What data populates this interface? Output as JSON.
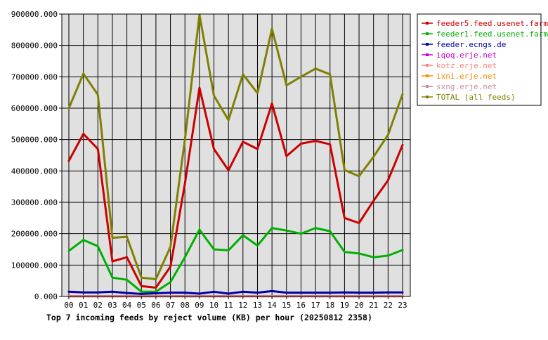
{
  "chart_data": {
    "type": "line",
    "title": "Top 7 incoming feeds by reject volume (KB) per hour (20250812 2358)",
    "categories": [
      "00",
      "01",
      "02",
      "03",
      "04",
      "05",
      "06",
      "07",
      "08",
      "09",
      "10",
      "11",
      "12",
      "13",
      "14",
      "15",
      "16",
      "17",
      "18",
      "19",
      "20",
      "21",
      "22",
      "23"
    ],
    "ylim": [
      0,
      900000
    ],
    "yticks": [
      {
        "value": 0,
        "label": "0.000"
      },
      {
        "value": 100000,
        "label": "100000.000"
      },
      {
        "value": 200000,
        "label": "200000.000"
      },
      {
        "value": 300000,
        "label": "300000.000"
      },
      {
        "value": 400000,
        "label": "400000.000"
      },
      {
        "value": 500000,
        "label": "500000.000"
      },
      {
        "value": 600000,
        "label": "600000.000"
      },
      {
        "value": 700000,
        "label": "700000.000"
      },
      {
        "value": 800000,
        "label": "800000.000"
      },
      {
        "value": 900000,
        "label": "900000.000"
      }
    ],
    "grid": true,
    "legend_position": "right",
    "plot_background": "#e0e0e0",
    "series": [
      {
        "name": "feeder5.feed.usenet.farm",
        "color": "#cc0000",
        "values": [
          432000,
          518000,
          470000,
          112000,
          125000,
          33000,
          28000,
          95000,
          360000,
          665000,
          470000,
          402000,
          493000,
          470000,
          615000,
          447000,
          487000,
          496000,
          485000,
          250000,
          234000,
          305000,
          370000,
          483000
        ]
      },
      {
        "name": "feeder1.feed.usenet.farm",
        "color": "#00b000",
        "values": [
          145000,
          180000,
          160000,
          60000,
          53000,
          15000,
          15000,
          46000,
          125000,
          213000,
          150000,
          147000,
          195000,
          162000,
          218000,
          210000,
          200000,
          218000,
          208000,
          142000,
          137000,
          125000,
          130000,
          148000
        ]
      },
      {
        "name": "feeder.ecngs.de",
        "color": "#0000aa",
        "values": [
          15000,
          13000,
          13000,
          15000,
          11000,
          8000,
          10000,
          12000,
          12000,
          9000,
          15000,
          9000,
          15000,
          12000,
          17000,
          12000,
          12000,
          12000,
          12000,
          13000,
          12000,
          12000,
          13000,
          13000
        ]
      },
      {
        "name": "iqoq.erje.net",
        "color": "#cc00cc",
        "values": [
          1000,
          1000,
          1000,
          1000,
          1000,
          1000,
          1000,
          1000,
          1000,
          1000,
          1000,
          1000,
          1000,
          1000,
          1000,
          1000,
          1000,
          1000,
          1000,
          1000,
          1000,
          1000,
          1000,
          1000
        ]
      },
      {
        "name": "kotz.erje.net",
        "color": "#ff8080",
        "values": [
          500,
          500,
          500,
          500,
          500,
          500,
          500,
          500,
          500,
          500,
          500,
          500,
          500,
          500,
          500,
          500,
          500,
          500,
          500,
          500,
          500,
          500,
          500,
          500
        ]
      },
      {
        "name": "ixni.erje.net",
        "color": "#ff8800",
        "values": [
          500,
          500,
          500,
          500,
          500,
          500,
          500,
          500,
          500,
          500,
          500,
          500,
          500,
          500,
          500,
          500,
          500,
          500,
          500,
          500,
          500,
          500,
          500,
          500
        ]
      },
      {
        "name": "sxng.erje.net",
        "color": "#cc8899",
        "values": [
          500,
          500,
          500,
          500,
          500,
          500,
          500,
          500,
          500,
          500,
          500,
          500,
          500,
          500,
          500,
          500,
          500,
          500,
          500,
          500,
          500,
          500,
          500,
          500
        ]
      },
      {
        "name": "TOTAL (all feeds)",
        "color": "#808000",
        "values": [
          600000,
          710000,
          643000,
          187000,
          190000,
          60000,
          55000,
          158000,
          500000,
          898000,
          640000,
          562000,
          708000,
          648000,
          853000,
          673000,
          700000,
          726000,
          708000,
          403000,
          383000,
          445000,
          515000,
          645000
        ]
      }
    ]
  }
}
